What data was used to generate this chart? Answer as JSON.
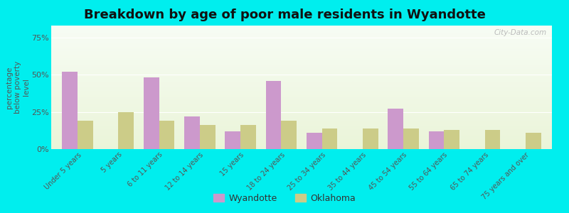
{
  "title": "Breakdown by age of poor male residents in Wyandotte",
  "categories": [
    "Under 5 years",
    "5 years",
    "6 to 11 years",
    "12 to 14 years",
    "15 years",
    "18 to 24 years",
    "25 to 34 years",
    "35 to 44 years",
    "45 to 54 years",
    "55 to 64 years",
    "65 to 74 years",
    "75 years and over"
  ],
  "wyandotte_values": [
    52,
    0,
    48,
    22,
    12,
    46,
    11,
    0,
    27,
    12,
    0,
    0
  ],
  "oklahoma_values": [
    19,
    25,
    19,
    16,
    16,
    19,
    14,
    14,
    14,
    13,
    13,
    11
  ],
  "wyandotte_color": "#cc99cc",
  "oklahoma_color": "#cccc88",
  "ylabel": "percentage\nbelow poverty\nlevel",
  "yticks": [
    0,
    25,
    50,
    75
  ],
  "ytick_labels": [
    "0%",
    "25%",
    "50%",
    "75%"
  ],
  "ylim": [
    0,
    83
  ],
  "outer_bg": "#00eeee",
  "title_fontsize": 13,
  "bar_width": 0.38,
  "legend_label_wy": "Wyandotte",
  "legend_label_ok": "Oklahoma"
}
